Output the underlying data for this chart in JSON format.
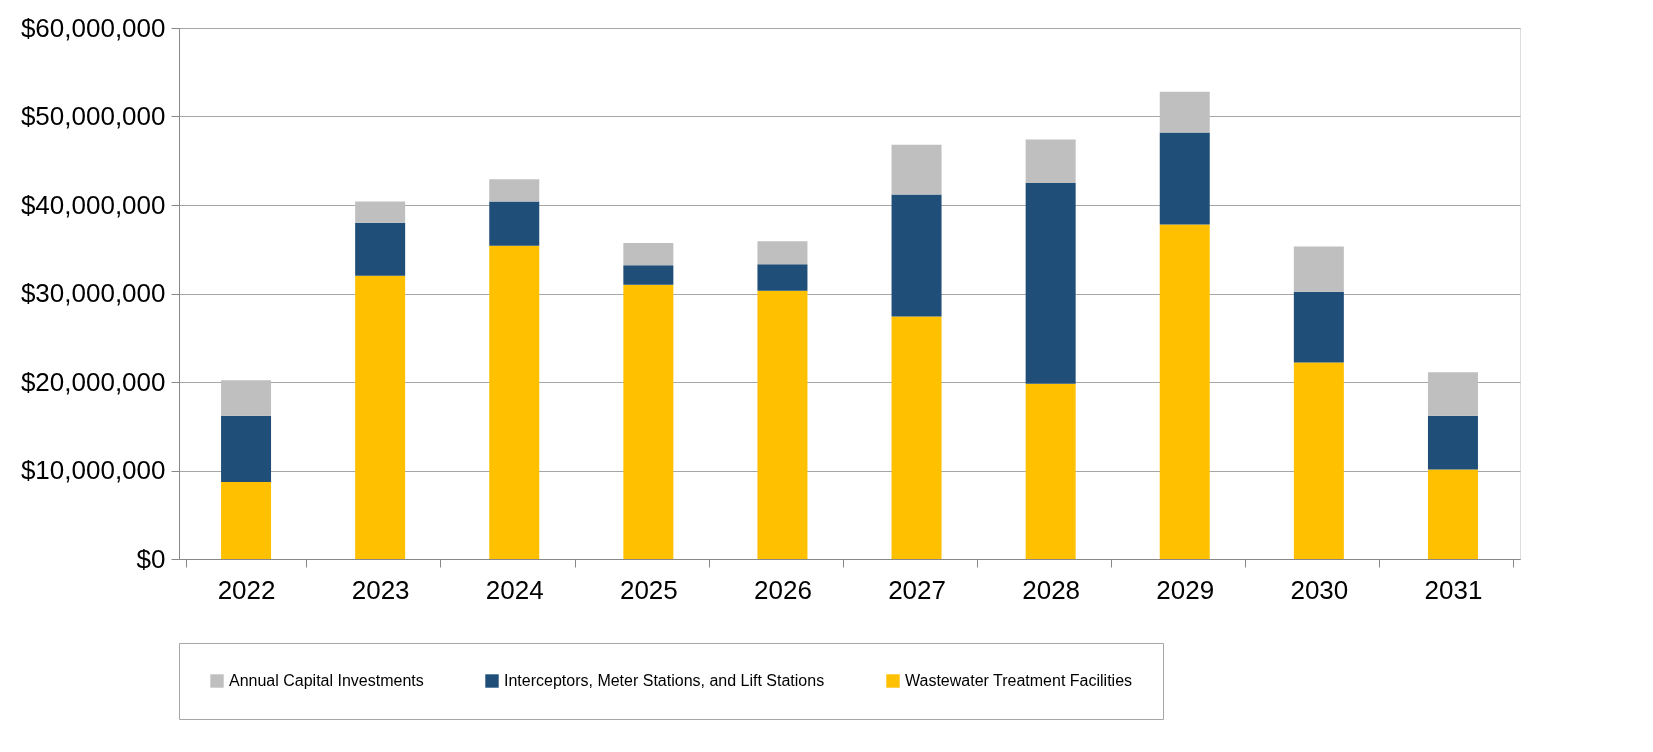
{
  "chart_data": {
    "type": "bar",
    "stacked": true,
    "categories": [
      "2022",
      "2023",
      "2024",
      "2025",
      "2026",
      "2027",
      "2028",
      "2029",
      "2030",
      "2031"
    ],
    "series": [
      {
        "name": "Wastewater Treatment Facilities",
        "color": "#ffc000",
        "values": [
          8700000,
          32000000,
          35400000,
          31000000,
          30300000,
          27400000,
          19800000,
          37800000,
          22200000,
          10100000
        ]
      },
      {
        "name": "Interceptors, Meter Stations, and Lift Stations",
        "color": "#1f4e79",
        "values": [
          7500000,
          6000000,
          5000000,
          2200000,
          3000000,
          13800000,
          22700000,
          10400000,
          8000000,
          6100000
        ]
      },
      {
        "name": "Annual Capital Investments",
        "color": "#bfbfbf",
        "values": [
          4000000,
          2400000,
          2500000,
          2500000,
          2600000,
          5600000,
          4900000,
          4600000,
          5100000,
          4900000
        ]
      }
    ],
    "ylim": [
      0,
      60000000
    ],
    "yticks": [
      {
        "value": 0,
        "label": "$0"
      },
      {
        "value": 10000000,
        "label": "$10,000,000"
      },
      {
        "value": 20000000,
        "label": "$20,000,000"
      },
      {
        "value": 30000000,
        "label": "$30,000,000"
      },
      {
        "value": 40000000,
        "label": "$40,000,000"
      },
      {
        "value": 50000000,
        "label": "$50,000,000"
      },
      {
        "value": 60000000,
        "label": "$60,000,000"
      }
    ],
    "grid": "y",
    "legend": "bottom"
  }
}
